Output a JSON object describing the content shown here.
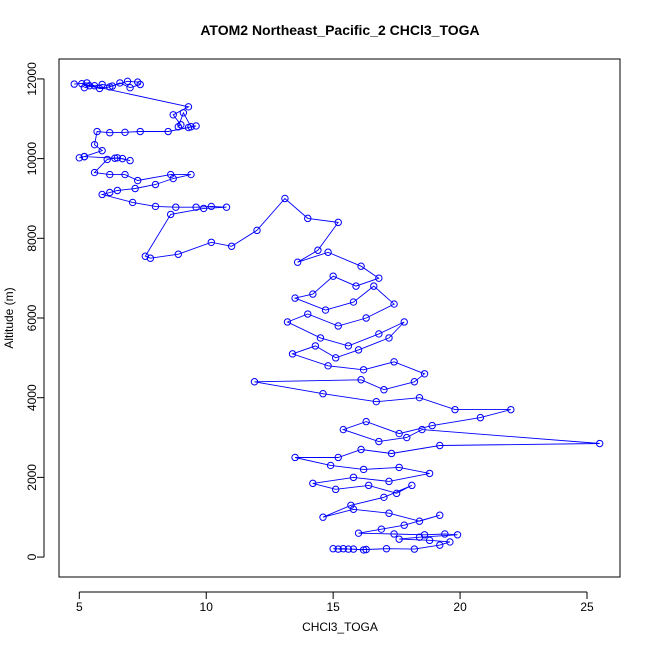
{
  "chart_data": {
    "type": "line",
    "title": "ATOM2 Northeast_Pacific_2 CHCl3_TOGA",
    "xlabel": "CHCl3_TOGA",
    "ylabel": "Altitude (m)",
    "xlim": [
      4.2,
      26.3
    ],
    "ylim": [
      -500,
      12500
    ],
    "xticks": [
      5,
      10,
      15,
      20,
      25
    ],
    "yticks": [
      0,
      2000,
      4000,
      6000,
      8000,
      10000,
      12000
    ],
    "grid": false,
    "markers": "open-circle",
    "color": "#0000ff",
    "series": [
      {
        "x": [
          4.8,
          5.3,
          5.6,
          5.2,
          5.9,
          6.3,
          6.9,
          7.3,
          7.4,
          7.0,
          6.6,
          6.2,
          5.8,
          5.4,
          5.1,
          9.3,
          8.7,
          9.0,
          8.9,
          9.1,
          9.4,
          9.6,
          9.3,
          8.5,
          7.4,
          6.8,
          6.2,
          5.7,
          5.6,
          5.9,
          5.2,
          5.0,
          5.2,
          6.4,
          6.7,
          7.0,
          6.5,
          6.1,
          5.6,
          6.2,
          6.8,
          7.3,
          8.6,
          9.4,
          8.7,
          8.0,
          7.2,
          6.5,
          6.2,
          5.9,
          7.1,
          8.0,
          8.8,
          9.6,
          10.2,
          10.8,
          9.9,
          8.6,
          7.6,
          7.8,
          8.9,
          10.2,
          11.0,
          12.0,
          13.1,
          14.0,
          15.2,
          14.4,
          13.6,
          14.8,
          16.1,
          16.8,
          15.9,
          15.0,
          14.2,
          13.5,
          14.7,
          15.8,
          16.6,
          17.4,
          16.3,
          15.2,
          14.0,
          13.2,
          14.5,
          15.6,
          16.8,
          17.8,
          17.2,
          16.0,
          15.1,
          14.3,
          13.4,
          14.8,
          16.2,
          17.4,
          18.6,
          18.2,
          17.0,
          16.1,
          11.9,
          14.6,
          16.7,
          18.4,
          19.8,
          22.0,
          20.8,
          18.9,
          17.6,
          16.3,
          15.4,
          16.8,
          17.9,
          18.5,
          25.5,
          19.2,
          17.3,
          16.1,
          15.2,
          13.5,
          14.9,
          16.2,
          17.6,
          18.8,
          17.2,
          15.8,
          14.2,
          15.1,
          16.4,
          17.5,
          18.1,
          17.0,
          15.7,
          14.6,
          15.8,
          17.2,
          18.4,
          19.2,
          17.8,
          16.9,
          16.0,
          17.4,
          18.6,
          19.4,
          19.9,
          18.4,
          17.6,
          18.8,
          19.6,
          19.2,
          18.2,
          17.1,
          16.3,
          15.6,
          15.2,
          15.4,
          16.2,
          15.8,
          15.0
        ],
        "y": [
          11870,
          11900,
          11830,
          11780,
          11860,
          11820,
          11940,
          11920,
          11860,
          11780,
          11900,
          11800,
          11760,
          11830,
          11880,
          11300,
          11100,
          10850,
          10800,
          11150,
          10800,
          10820,
          10780,
          10680,
          10680,
          10660,
          10650,
          10680,
          10350,
          10200,
          10050,
          10020,
          10050,
          10010,
          10000,
          9950,
          10020,
          9980,
          9650,
          9600,
          9600,
          9450,
          9600,
          9600,
          9500,
          9350,
          9250,
          9200,
          9150,
          9100,
          8900,
          8800,
          8780,
          8780,
          8800,
          8780,
          8750,
          8600,
          7550,
          7500,
          7600,
          7900,
          7800,
          8200,
          9000,
          8500,
          8400,
          7700,
          7400,
          7650,
          7300,
          7000,
          6800,
          7050,
          6600,
          6500,
          6200,
          6400,
          6800,
          6350,
          6000,
          5800,
          6100,
          5900,
          5500,
          5300,
          5600,
          5900,
          5500,
          5200,
          5000,
          5300,
          5100,
          4800,
          4700,
          4900,
          4600,
          4400,
          4200,
          4450,
          4400,
          4100,
          3900,
          4000,
          3700,
          3700,
          3500,
          3300,
          3100,
          3400,
          3200,
          2900,
          3000,
          3200,
          2850,
          2800,
          2600,
          2700,
          2500,
          2500,
          2300,
          2200,
          2250,
          2100,
          1900,
          2000,
          1850,
          1700,
          1800,
          1600,
          1800,
          1500,
          1300,
          1000,
          1200,
          1100,
          900,
          1050,
          800,
          700,
          600,
          580,
          560,
          580,
          560,
          500,
          450,
          420,
          380,
          300,
          200,
          210,
          190,
          200,
          200,
          210,
          180,
          200,
          210
        ]
      }
    ]
  }
}
